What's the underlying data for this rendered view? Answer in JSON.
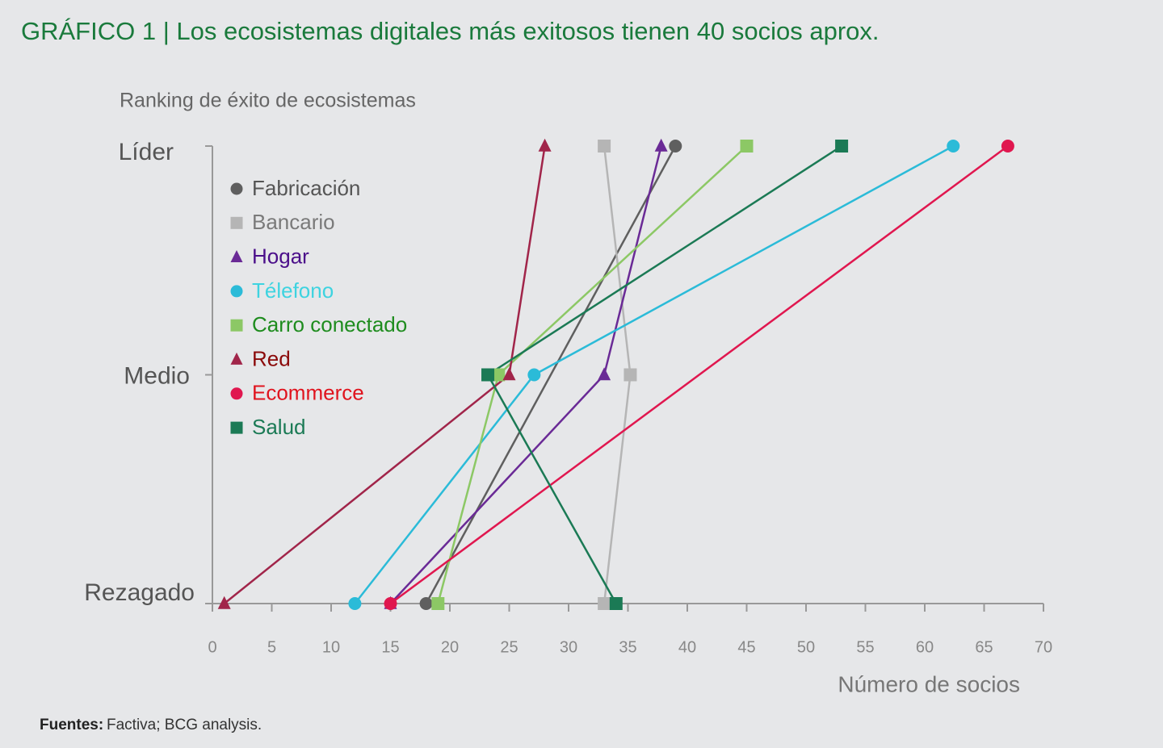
{
  "chart_data": {
    "type": "line",
    "title": "GRÁFICO 1 | Los ecosistemas digitales más exitosos tienen 40 socios aprox.",
    "y_label": "Ranking de éxito de ecosistemas",
    "x_label": "Número de socios",
    "source_label": "Fuentes:",
    "source": "Factiva; BCG analysis.",
    "xlim": [
      0,
      70
    ],
    "xticks": [
      0,
      5,
      10,
      15,
      20,
      25,
      30,
      35,
      40,
      45,
      50,
      55,
      60,
      65,
      70
    ],
    "ylim": [
      0,
      2
    ],
    "yticks": [
      {
        "value": 0,
        "label": "Rezagado"
      },
      {
        "value": 1,
        "label": "Medio"
      },
      {
        "value": 2,
        "label": "Líder"
      }
    ],
    "legend": "upper-left",
    "series": [
      {
        "name": "Fabricación",
        "color": "#5f5f5f",
        "label_color": "#555555",
        "marker": "circle",
        "x": [
          39,
          18
        ],
        "y": [
          2,
          0
        ]
      },
      {
        "name": "Bancario",
        "color": "#b5b5b5",
        "label_color": "#7a7a7a",
        "marker": "square",
        "x": [
          33,
          35.2,
          33
        ],
        "y": [
          2,
          1,
          0
        ]
      },
      {
        "name": "Hogar",
        "color": "#6a2a96",
        "label_color": "#4b0f8a",
        "marker": "triangle",
        "x": [
          37.8,
          33,
          15
        ],
        "y": [
          2,
          1,
          0
        ]
      },
      {
        "name": "Télefono",
        "color": "#2bbbd8",
        "label_color": "#3ed3e0",
        "marker": "circle",
        "x": [
          62.4,
          27.1,
          12
        ],
        "y": [
          2,
          1,
          0
        ]
      },
      {
        "name": "Carro conectado",
        "color": "#8cc865",
        "label_color": "#1e8c1e",
        "marker": "square",
        "x": [
          45,
          24.1,
          19
        ],
        "y": [
          2,
          1,
          0
        ]
      },
      {
        "name": "Red",
        "color": "#a1254a",
        "label_color": "#8b0a0a",
        "marker": "triangle",
        "x": [
          28,
          25,
          1
        ],
        "y": [
          2,
          1,
          0
        ]
      },
      {
        "name": "Ecommerce",
        "color": "#e0174f",
        "label_color": "#e0141e",
        "marker": "circle",
        "x": [
          67,
          15
        ],
        "y": [
          2,
          0
        ]
      },
      {
        "name": "Salud",
        "color": "#1b7a55",
        "label_color": "#1b7a55",
        "marker": "square",
        "x": [
          53,
          23.2,
          34
        ],
        "y": [
          2,
          1,
          0
        ]
      }
    ]
  }
}
